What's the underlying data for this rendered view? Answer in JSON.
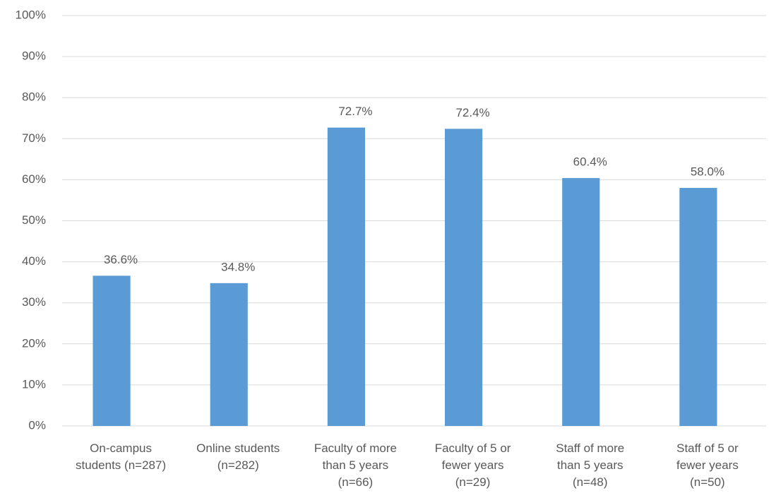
{
  "chart_data": {
    "type": "bar",
    "categories": [
      "On-campus\nstudents (n=287)",
      "Online students\n(n=282)",
      "Faculty of more\nthan 5 years\n(n=66)",
      "Faculty of 5 or\nfewer years\n(n=29)",
      "Staff of more\nthan 5 years\n(n=48)",
      "Staff of 5 or\nfewer years\n(n=50)"
    ],
    "values": [
      36.6,
      34.8,
      72.7,
      72.4,
      60.4,
      58.0
    ],
    "value_labels": [
      "36.6%",
      "34.8%",
      "72.7%",
      "72.4%",
      "60.4%",
      "58.0%"
    ],
    "color": "#5b9bd5",
    "ylim": [
      0,
      100
    ],
    "yticks": [
      {
        "value": 0,
        "label": "0%"
      },
      {
        "value": 10,
        "label": "10%"
      },
      {
        "value": 20,
        "label": "20%"
      },
      {
        "value": 30,
        "label": "30%"
      },
      {
        "value": 40,
        "label": "40%"
      },
      {
        "value": 50,
        "label": "50%"
      },
      {
        "value": 60,
        "label": "60%"
      },
      {
        "value": 70,
        "label": "70%"
      },
      {
        "value": 80,
        "label": "80%"
      },
      {
        "value": 90,
        "label": "90%"
      },
      {
        "value": 100,
        "label": "100%"
      }
    ],
    "grid": true
  }
}
